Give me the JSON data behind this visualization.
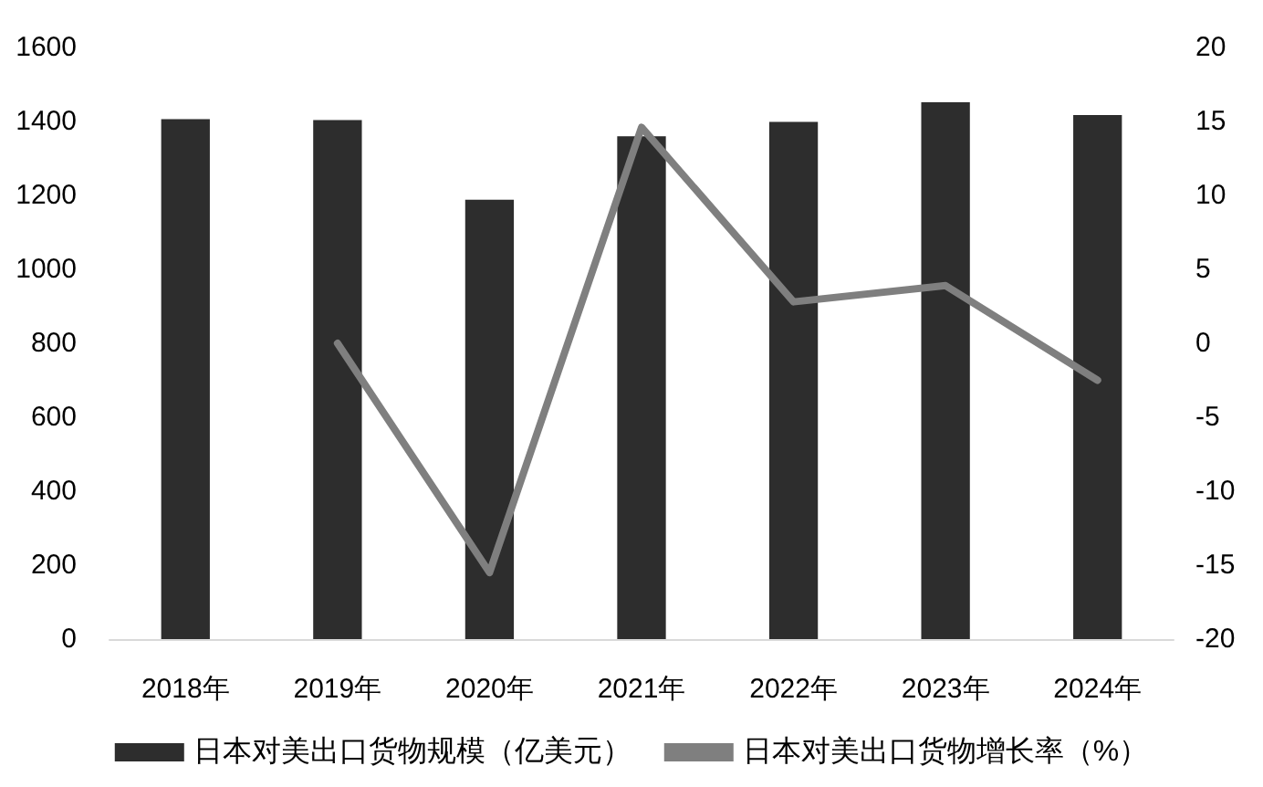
{
  "chart_data": {
    "type": "bar",
    "categories": [
      "2018年",
      "2019年",
      "2020年",
      "2021年",
      "2022年",
      "2023年",
      "2024年"
    ],
    "series": [
      {
        "name": "日本对美出口货物规模（亿美元）",
        "color": "#2d2d2d",
        "values": [
          1406,
          1404,
          1188,
          1360,
          1399,
          1452,
          1417
        ]
      },
      {
        "name": "日本对美出口货物增长率（%）",
        "type": "line",
        "axis": "y2",
        "color": "#7f7f7f",
        "values": [
          null,
          0,
          -15.5,
          14.6,
          2.8,
          3.9,
          -2.5
        ]
      }
    ],
    "ylim": [
      0,
      1600
    ],
    "yticks": [
      0,
      200,
      400,
      600,
      800,
      1000,
      1200,
      1400,
      1600
    ],
    "y2lim": [
      -20,
      20
    ],
    "y2ticks": [
      -20,
      -15,
      -10,
      -5,
      0,
      5,
      10,
      15,
      20
    ],
    "grid": false,
    "legend": "bottom",
    "marker": "none",
    "line_style": "solid"
  }
}
